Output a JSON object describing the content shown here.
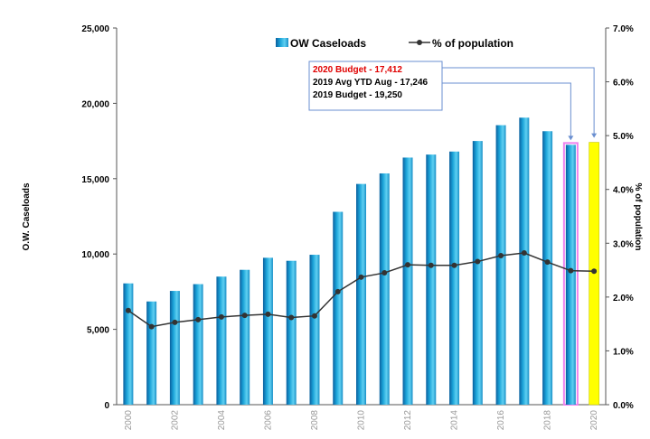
{
  "chart_data": {
    "type": "bar",
    "categories": [
      "2000",
      "2001",
      "2002",
      "2003",
      "2004",
      "2005",
      "2006",
      "2007",
      "2008",
      "2009",
      "2010",
      "2011",
      "2012",
      "2013",
      "2014",
      "2015",
      "2016",
      "2017",
      "2018",
      "2019",
      "2020"
    ],
    "xtick_labels": [
      "2000",
      "",
      "2002",
      "",
      "2004",
      "",
      "2006",
      "",
      "2008",
      "",
      "2010",
      "",
      "2012",
      "",
      "2014",
      "",
      "2016",
      "",
      "2018",
      "",
      "2020"
    ],
    "series": [
      {
        "name": "OW Caseloads",
        "axis": "left",
        "values": [
          8050,
          6850,
          7550,
          8000,
          8500,
          8950,
          9750,
          9550,
          9950,
          12800,
          14650,
          15350,
          16400,
          16600,
          16800,
          17500,
          18550,
          19050,
          18150,
          17246,
          17412
        ],
        "color": "#1ba3d8",
        "highlight": {
          "2019": {
            "outline": "#ee82ee"
          },
          "2020": {
            "fill": "#ffff00"
          }
        }
      },
      {
        "name": "% of population",
        "axis": "right",
        "type": "line",
        "values": [
          1.75,
          1.45,
          1.53,
          1.58,
          1.63,
          1.66,
          1.68,
          1.62,
          1.65,
          2.1,
          2.37,
          2.45,
          2.6,
          2.59,
          2.59,
          2.66,
          2.77,
          2.82,
          2.65,
          2.49,
          2.48
        ],
        "color": "#333333"
      }
    ],
    "ylabel": "O.W. Caseloads",
    "y2label": "% of population",
    "ylim": [
      0,
      25000
    ],
    "y2lim": [
      0,
      7.0
    ],
    "yticks": [
      "0",
      "5,000",
      "10,000",
      "15,000",
      "20,000",
      "25,000"
    ],
    "y2ticks": [
      "0.0%",
      "1.0%",
      "2.0%",
      "3.0%",
      "4.0%",
      "5.0%",
      "6.0%",
      "7.0%"
    ],
    "grid": false,
    "legend": "top-center",
    "annotation": {
      "lines": [
        {
          "text": "2020 Budget - 17,412",
          "color": "#e00000"
        },
        {
          "text": "2019 Avg YTD Aug - 17,246",
          "color": "#000000"
        },
        {
          "text": "2019 Budget  - 19,250",
          "color": "#000000"
        }
      ],
      "connector_color": "#6a8fd0"
    }
  }
}
